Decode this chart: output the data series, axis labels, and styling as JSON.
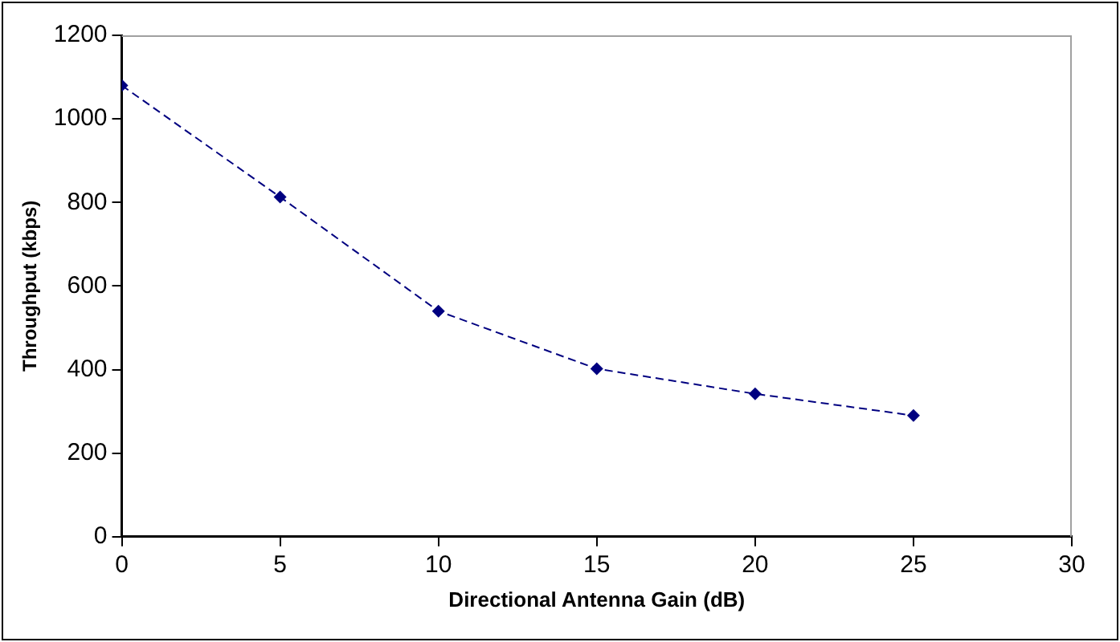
{
  "chart_data": {
    "type": "line",
    "xlabel": "Directional Antenna Gain (dB)",
    "ylabel": "Throughput (kbps)",
    "x": [
      0,
      5,
      10,
      15,
      20,
      25
    ],
    "series": [
      {
        "color": "#000080",
        "values": [
          1080,
          813,
          540,
          402,
          342,
          290
        ]
      }
    ],
    "xlim": [
      0,
      30
    ],
    "xticks": [
      0,
      5,
      10,
      15,
      20,
      25,
      30
    ],
    "ylim": [
      0,
      1200
    ],
    "yticks": [
      0,
      200,
      400,
      600,
      800,
      1000,
      1200
    ],
    "grid": false,
    "legend": false,
    "marker": "diamond",
    "line_style": "dashed"
  }
}
